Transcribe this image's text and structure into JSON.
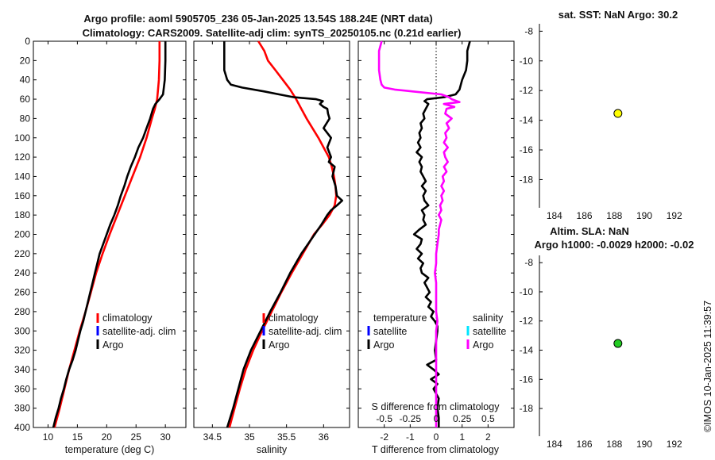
{
  "header": {
    "title_line1": "Argo profile: aoml 5905705_236 05-Jan-2025 13.54S 188.24E (NRT data)",
    "title_line2": "Climatology: CARS2009. Satellite-adj clim: synTS_20250105.nc (0.21d earlier)"
  },
  "colors": {
    "argo": "#000000",
    "climatology": "#ff0000",
    "satellite": "#0000ff",
    "salinity_diff": "#ff00ff",
    "satellite_salinity": "#00e5ff",
    "sst_marker": "#ffff00",
    "sla_marker": "#22cc22"
  },
  "legend": {
    "climatology": "climatology",
    "satellite": "satellite-adj. clim",
    "argo": "Argo"
  },
  "legend_diff": {
    "temperature_head": "temperature",
    "salinity_head": "salinity",
    "satellite": "satellite",
    "argo": "Argo"
  },
  "watermark": "©IMOS 10-Jan-2025 11:39:57",
  "chart_data": [
    {
      "type": "line",
      "name": "temperature",
      "xlabel": "temperature (deg C)",
      "ylabel": "depth",
      "xlim": [
        7.5,
        33.5
      ],
      "ylim": [
        400,
        0
      ],
      "xticks": [
        10,
        15,
        20,
        25,
        30
      ],
      "yticks": [
        0,
        20,
        40,
        60,
        80,
        100,
        120,
        140,
        160,
        180,
        200,
        220,
        240,
        260,
        280,
        300,
        320,
        340,
        360,
        380,
        400
      ],
      "series": [
        {
          "name": "climatology",
          "color": "red",
          "depth": [
            0,
            20,
            40,
            60,
            70,
            80,
            100,
            120,
            140,
            160,
            180,
            200,
            220,
            240,
            260,
            280,
            300,
            320,
            340,
            360,
            380,
            400
          ],
          "values": [
            29.0,
            29.0,
            28.9,
            28.6,
            28.2,
            27.7,
            26.8,
            25.7,
            24.4,
            23.1,
            21.8,
            20.5,
            19.3,
            18.2,
            17.3,
            16.4,
            15.4,
            14.5,
            13.6,
            12.8,
            12.0,
            11.1
          ]
        },
        {
          "name": "Argo",
          "color": "black",
          "depth": [
            0,
            20,
            40,
            55,
            60,
            65,
            70,
            80,
            90,
            100,
            110,
            120,
            130,
            140,
            150,
            160,
            170,
            180,
            190,
            200,
            210,
            220,
            230,
            240,
            250,
            260,
            270,
            280,
            290,
            300,
            310,
            320,
            330,
            340,
            350,
            360,
            370,
            380,
            390,
            400
          ],
          "values": [
            30.0,
            30.0,
            29.9,
            29.6,
            29.0,
            28.3,
            27.9,
            27.4,
            26.8,
            26.2,
            25.4,
            24.8,
            24.1,
            23.5,
            23.0,
            22.4,
            21.9,
            21.3,
            20.6,
            20.0,
            19.4,
            18.8,
            18.4,
            18.0,
            17.6,
            17.2,
            16.8,
            16.4,
            16.0,
            15.5,
            15.1,
            14.7,
            14.2,
            13.6,
            13.1,
            12.7,
            12.2,
            11.8,
            11.3,
            10.9
          ]
        }
      ]
    },
    {
      "type": "line",
      "name": "salinity",
      "xlabel": "salinity",
      "ylim": [
        400,
        0
      ],
      "xlim": [
        34.25,
        36.35
      ],
      "xticks": [
        34.5,
        35,
        35.5,
        36
      ],
      "series": [
        {
          "name": "climatology",
          "color": "red",
          "depth": [
            0,
            10,
            20,
            30,
            40,
            50,
            60,
            70,
            80,
            90,
            100,
            110,
            120,
            130,
            140,
            150,
            160,
            170,
            180,
            190,
            200,
            220,
            240,
            260,
            280,
            300,
            320,
            340,
            360,
            380,
            400
          ],
          "values": [
            35.12,
            35.2,
            35.25,
            35.35,
            35.45,
            35.55,
            35.63,
            35.7,
            35.77,
            35.85,
            35.93,
            36.0,
            36.07,
            36.11,
            36.14,
            36.16,
            36.17,
            36.15,
            36.08,
            35.98,
            35.87,
            35.72,
            35.57,
            35.43,
            35.3,
            35.17,
            35.05,
            34.95,
            34.87,
            34.8,
            34.73
          ]
        },
        {
          "name": "Argo",
          "color": "black",
          "depth": [
            0,
            10,
            20,
            30,
            40,
            45,
            48,
            52,
            55,
            58,
            60,
            62,
            65,
            68,
            70,
            75,
            80,
            90,
            95,
            100,
            110,
            120,
            125,
            130,
            140,
            150,
            160,
            165,
            170,
            175,
            180,
            190,
            200,
            220,
            240,
            260,
            280,
            300,
            320,
            340,
            360,
            380,
            400
          ],
          "values": [
            34.66,
            34.66,
            34.66,
            34.66,
            34.7,
            34.75,
            34.9,
            35.2,
            35.4,
            35.6,
            35.9,
            35.99,
            35.95,
            36.0,
            36.05,
            36.06,
            36.08,
            36.0,
            36.05,
            36.1,
            36.05,
            36.1,
            36.07,
            36.15,
            36.12,
            36.16,
            36.18,
            36.25,
            36.18,
            36.1,
            36.05,
            35.97,
            35.88,
            35.7,
            35.55,
            35.42,
            35.28,
            35.15,
            35.02,
            34.92,
            34.85,
            34.78,
            34.7
          ]
        }
      ]
    },
    {
      "type": "line",
      "name": "difference",
      "xlabel": "T difference from climatology",
      "xlabel_top": "S difference from climatology",
      "ylim": [
        400,
        0
      ],
      "xlim": [
        -3,
        3
      ],
      "xticks": [
        -2,
        -1,
        0,
        1,
        2
      ],
      "xtick_labels_top": [
        "-0.5",
        "-0.25",
        "0",
        "0.25",
        "0.5"
      ],
      "series": [
        {
          "name": "T difference Argo",
          "color": "black",
          "depth": [
            0,
            10,
            20,
            30,
            40,
            50,
            55,
            58,
            60,
            62,
            65,
            70,
            75,
            80,
            85,
            90,
            95,
            100,
            105,
            110,
            115,
            120,
            125,
            130,
            135,
            140,
            145,
            150,
            155,
            160,
            165,
            170,
            175,
            180,
            185,
            190,
            195,
            200,
            205,
            210,
            215,
            220,
            225,
            230,
            235,
            240,
            245,
            250,
            255,
            260,
            265,
            270,
            275,
            280,
            285,
            290,
            295,
            300,
            310,
            320,
            330,
            335,
            340,
            345,
            350,
            355,
            360,
            365,
            370,
            380,
            390,
            400
          ],
          "values": [
            1.3,
            1.2,
            1.2,
            1.15,
            1.0,
            0.9,
            0.75,
            0.3,
            -0.35,
            -0.45,
            -0.3,
            -0.4,
            -0.5,
            -0.45,
            -0.6,
            -0.55,
            -0.65,
            -0.6,
            -0.7,
            -0.6,
            -0.75,
            -0.55,
            -0.65,
            -0.55,
            -0.6,
            -0.5,
            -0.4,
            -0.55,
            -0.4,
            -0.5,
            -0.45,
            -0.3,
            -0.55,
            -0.45,
            -0.5,
            -0.4,
            -0.65,
            -0.85,
            -0.55,
            -0.6,
            -0.75,
            -0.55,
            -0.7,
            -0.5,
            -0.6,
            -0.55,
            -0.3,
            -0.45,
            -0.35,
            -0.25,
            -0.4,
            -0.2,
            -0.3,
            -0.1,
            -0.2,
            -0.05,
            0.05,
            0.05,
            0.0,
            -0.05,
            0.0,
            -0.35,
            -0.1,
            0.1,
            -0.2,
            0.05,
            -0.1,
            0.0,
            0.1,
            0.05,
            0.1,
            0.1
          ]
        },
        {
          "name": "S difference Argo",
          "color": "magenta",
          "depth": [
            0,
            10,
            20,
            30,
            40,
            45,
            48,
            50,
            52,
            55,
            58,
            60,
            63,
            65,
            68,
            70,
            75,
            80,
            85,
            90,
            95,
            100,
            105,
            110,
            115,
            120,
            125,
            130,
            135,
            140,
            145,
            150,
            155,
            160,
            165,
            170,
            175,
            180,
            185,
            190,
            195,
            200,
            210,
            220,
            230,
            240,
            250,
            260,
            270,
            280,
            290,
            300,
            320,
            340,
            360,
            380,
            400
          ],
          "values": [
            -2.1,
            -2.2,
            -2.2,
            -2.2,
            -2.15,
            -2.1,
            -2.0,
            -1.6,
            -0.9,
            0.2,
            0.5,
            0.6,
            0.9,
            0.3,
            0.7,
            0.4,
            0.35,
            0.6,
            0.4,
            0.5,
            0.35,
            0.4,
            0.3,
            0.45,
            0.3,
            0.35,
            0.45,
            0.3,
            0.4,
            0.25,
            0.3,
            0.2,
            0.3,
            0.2,
            0.25,
            0.15,
            0.2,
            0.1,
            0.2,
            0.15,
            0.1,
            0.1,
            0.05,
            0.0,
            0.0,
            -0.05,
            0.0,
            0.0,
            0.0,
            0.0,
            0.05,
            0.0,
            0.0,
            0.0,
            0.0,
            0.0,
            0.0
          ]
        }
      ]
    },
    {
      "type": "scatter",
      "name": "sst-map",
      "title": "sat. SST: NaN Argo: 30.2",
      "xlim": [
        183,
        193.5
      ],
      "ylim": [
        -19.9,
        -7.5
      ],
      "xticks": [
        184,
        186,
        188,
        190,
        192
      ],
      "yticks": [
        -8,
        -10,
        -12,
        -14,
        -16,
        -18
      ],
      "points": [
        {
          "x": 188.24,
          "y": -13.54
        }
      ]
    },
    {
      "type": "scatter",
      "name": "sla-map",
      "title_line1": "Altim. SLA: NaN",
      "title_line2": "Argo h1000: -0.0029 h2000: -0.02",
      "xlim": [
        183,
        193.5
      ],
      "ylim": [
        -19.9,
        -7.5
      ],
      "xticks": [
        184,
        186,
        188,
        190,
        192
      ],
      "yticks": [
        -8,
        -10,
        -12,
        -14,
        -16,
        -18
      ],
      "points": [
        {
          "x": 188.24,
          "y": -13.54
        }
      ]
    }
  ]
}
